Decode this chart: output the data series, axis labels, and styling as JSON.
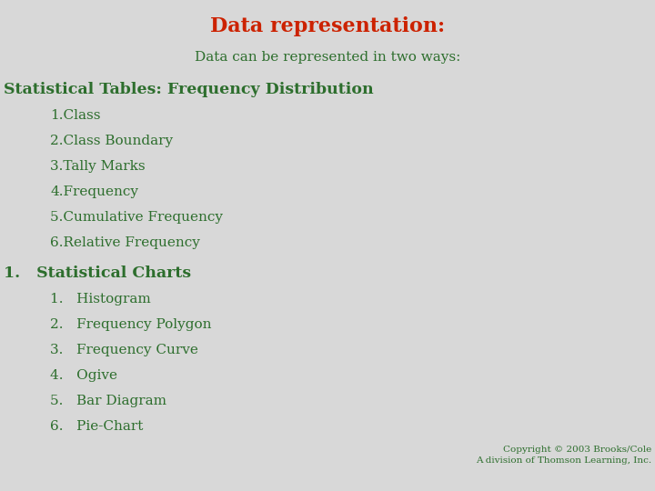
{
  "title": "Data representation:",
  "title_color": "#cc2200",
  "subtitle": "Data can be represented in two ways:",
  "subtitle_color": "#2d6e2d",
  "section1_header": "Statistical Tables: Frequency Distribution",
  "section1_color": "#2d6e2d",
  "section1_items": [
    "1.Class",
    "2.Class Boundary",
    "3.Tally Marks",
    "4.Frequency",
    "5.Cumulative Frequency",
    "6.Relative Frequency"
  ],
  "section2_header": "1.   Statistical Charts",
  "section2_color": "#2d6e2d",
  "section2_items": [
    "1.   Histogram",
    "2.   Frequency Polygon",
    "3.   Frequency Curve",
    "4.   Ogive",
    "5.   Bar Diagram",
    "6.   Pie-Chart"
  ],
  "item_color": "#2d6e2d",
  "copyright_line1": "Copyright © 2003 Brooks/Cole",
  "copyright_line2": "A division of Thomson Learning, Inc.",
  "copyright_color": "#2d6e2d",
  "bg_color": "#d8d8d8",
  "title_fontsize": 16,
  "subtitle_fontsize": 11,
  "section_header_fontsize": 12.5,
  "item_fontsize": 11,
  "copyright_fontsize": 7.5
}
